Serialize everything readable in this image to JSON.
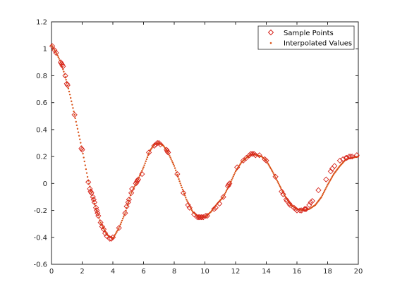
{
  "chart_data": {
    "type": "scatter",
    "title": "",
    "xlabel": "",
    "ylabel": "",
    "xlim": [
      0,
      20
    ],
    "ylim": [
      -0.6,
      1.2
    ],
    "xticks": [
      "0",
      "2",
      "4",
      "6",
      "8",
      "10",
      "12",
      "14",
      "16",
      "18",
      "20"
    ],
    "yticks": [
      "-0.6",
      "-0.4",
      "-0.2",
      "0",
      "0.2",
      "0.4",
      "0.6",
      "0.8",
      "1",
      "1.2"
    ],
    "grid": false,
    "legend": {
      "placement": "top-right",
      "entries": [
        "Sample Points",
        "Interpolated Values"
      ]
    },
    "colors": {
      "sample": "#d7261e",
      "interp": "#d95319",
      "axis": "#262626"
    },
    "series": [
      {
        "name": "Sample Points",
        "marker": "diamond",
        "x": [
          0.05,
          0.2,
          0.3,
          0.6,
          0.65,
          0.7,
          0.75,
          0.9,
          1.0,
          1.05,
          1.5,
          1.95,
          2.0,
          2.4,
          2.5,
          2.55,
          2.6,
          2.7,
          2.75,
          2.8,
          2.9,
          2.95,
          3.0,
          3.05,
          3.2,
          3.3,
          3.4,
          3.5,
          3.6,
          3.8,
          3.9,
          4.0,
          4.4,
          4.8,
          4.9,
          5.0,
          5.05,
          5.2,
          5.25,
          5.5,
          5.55,
          5.6,
          5.65,
          5.9,
          6.35,
          6.7,
          6.8,
          6.9,
          7.0,
          7.1,
          7.5,
          7.55,
          7.6,
          8.2,
          8.6,
          8.9,
          9.0,
          9.3,
          9.5,
          9.6,
          9.65,
          9.75,
          9.8,
          9.9,
          10.05,
          10.15,
          10.6,
          10.7,
          10.95,
          11.2,
          11.5,
          11.55,
          11.6,
          12.1,
          12.5,
          12.7,
          12.9,
          13.0,
          13.1,
          13.2,
          13.3,
          13.55,
          13.9,
          14.0,
          14.6,
          15.0,
          15.1,
          15.3,
          15.35,
          15.5,
          15.55,
          15.8,
          15.9,
          16.0,
          16.2,
          16.3,
          16.5,
          16.55,
          16.6,
          16.8,
          16.9,
          17.0,
          17.4,
          17.9,
          18.2,
          18.3,
          18.45,
          18.8,
          19.0,
          19.2,
          19.25,
          19.4,
          19.5,
          19.6,
          19.9
        ],
        "y": [
          1.02,
          0.99,
          0.97,
          0.9,
          0.89,
          0.88,
          0.87,
          0.8,
          0.74,
          0.73,
          0.51,
          0.26,
          0.25,
          0.01,
          -0.04,
          -0.06,
          -0.07,
          -0.1,
          -0.12,
          -0.14,
          -0.18,
          -0.2,
          -0.22,
          -0.24,
          -0.29,
          -0.32,
          -0.34,
          -0.37,
          -0.39,
          -0.41,
          -0.41,
          -0.4,
          -0.33,
          -0.22,
          -0.17,
          -0.14,
          -0.12,
          -0.07,
          -0.04,
          0.0,
          0.01,
          0.02,
          0.03,
          0.07,
          0.23,
          0.28,
          0.29,
          0.3,
          0.3,
          0.29,
          0.25,
          0.24,
          0.23,
          0.07,
          -0.07,
          -0.16,
          -0.18,
          -0.23,
          -0.25,
          -0.25,
          -0.25,
          -0.25,
          -0.25,
          -0.25,
          -0.24,
          -0.24,
          -0.19,
          -0.18,
          -0.15,
          -0.1,
          -0.02,
          -0.01,
          0.0,
          0.12,
          0.17,
          0.19,
          0.21,
          0.22,
          0.22,
          0.22,
          0.21,
          0.21,
          0.18,
          0.17,
          0.05,
          -0.06,
          -0.08,
          -0.12,
          -0.13,
          -0.15,
          -0.16,
          -0.18,
          -0.19,
          -0.2,
          -0.2,
          -0.2,
          -0.19,
          -0.19,
          -0.19,
          -0.16,
          -0.14,
          -0.13,
          -0.05,
          0.03,
          0.09,
          0.11,
          0.13,
          0.17,
          0.18,
          0.19,
          0.19,
          0.2,
          0.2,
          0.2,
          0.21
        ]
      },
      {
        "name": "Interpolated Values",
        "marker": "dot",
        "x_start": 0,
        "x_end": 20,
        "x_step": 0.05,
        "knots_x": [
          0,
          0.2,
          0.4,
          0.6,
          0.8,
          1,
          1.2,
          1.5,
          2,
          2.4,
          2.8,
          3.2,
          3.6,
          4,
          4.4,
          4.8,
          5.2,
          5.6,
          6,
          6.4,
          6.7,
          7,
          7.3,
          7.6,
          8,
          8.4,
          8.8,
          9.2,
          9.6,
          10,
          10.4,
          10.8,
          11.2,
          11.6,
          12,
          12.4,
          12.8,
          13.1,
          13.4,
          13.7,
          14,
          14.4,
          14.8,
          15.2,
          15.6,
          16,
          16.4,
          16.8,
          17.2,
          17.6,
          18,
          18.4,
          18.8,
          19.2,
          19.6,
          20
        ],
        "knots_y": [
          1.03,
          0.99,
          0.95,
          0.9,
          0.83,
          0.75,
          0.66,
          0.51,
          0.25,
          0.02,
          -0.15,
          -0.29,
          -0.38,
          -0.41,
          -0.33,
          -0.22,
          -0.07,
          0.02,
          0.12,
          0.24,
          0.29,
          0.3,
          0.28,
          0.23,
          0.13,
          0.0,
          -0.12,
          -0.21,
          -0.25,
          -0.25,
          -0.21,
          -0.15,
          -0.1,
          -0.01,
          0.09,
          0.16,
          0.2,
          0.22,
          0.21,
          0.2,
          0.17,
          0.09,
          0.0,
          -0.09,
          -0.16,
          -0.19,
          -0.2,
          -0.19,
          -0.16,
          -0.1,
          -0.01,
          0.07,
          0.13,
          0.18,
          0.19,
          0.2
        ]
      }
    ]
  }
}
